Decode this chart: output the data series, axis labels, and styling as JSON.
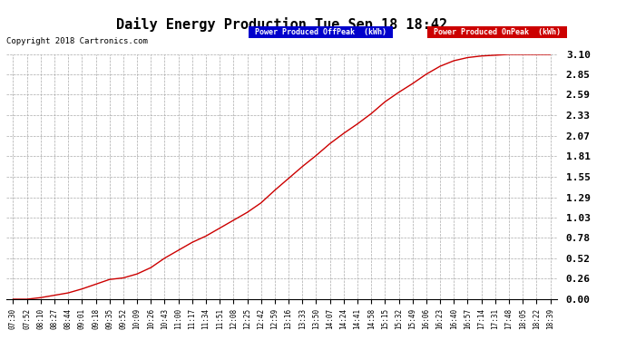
{
  "title": "Daily Energy Production Tue Sep 18 18:42",
  "copyright": "Copyright 2018 Cartronics.com",
  "legend_offpeak": "Power Produced OffPeak  (kWh)",
  "legend_onpeak": "Power Produced OnPeak  (kWh)",
  "y_ticks": [
    0.0,
    0.26,
    0.52,
    0.78,
    1.03,
    1.29,
    1.55,
    1.81,
    2.07,
    2.33,
    2.59,
    2.85,
    3.1
  ],
  "ylim": [
    0.0,
    3.1
  ],
  "background_color": "#ffffff",
  "grid_color": "#aaaaaa",
  "line_color": "#cc0000",
  "x_labels": [
    "07:30",
    "07:52",
    "08:10",
    "08:27",
    "08:44",
    "09:01",
    "09:18",
    "09:35",
    "09:52",
    "10:09",
    "10:26",
    "10:43",
    "11:00",
    "11:17",
    "11:34",
    "11:51",
    "12:08",
    "12:25",
    "12:42",
    "12:59",
    "13:16",
    "13:33",
    "13:50",
    "14:07",
    "14:24",
    "14:41",
    "14:58",
    "15:15",
    "15:32",
    "15:49",
    "16:06",
    "16:23",
    "16:40",
    "16:57",
    "17:14",
    "17:31",
    "17:48",
    "18:05",
    "18:22",
    "18:39"
  ],
  "curve_data": [
    [
      0,
      0.0
    ],
    [
      1,
      0.0
    ],
    [
      2,
      0.02
    ],
    [
      3,
      0.05
    ],
    [
      4,
      0.08
    ],
    [
      5,
      0.13
    ],
    [
      6,
      0.19
    ],
    [
      7,
      0.25
    ],
    [
      8,
      0.27
    ],
    [
      9,
      0.32
    ],
    [
      10,
      0.4
    ],
    [
      11,
      0.52
    ],
    [
      12,
      0.62
    ],
    [
      13,
      0.72
    ],
    [
      14,
      0.8
    ],
    [
      15,
      0.9
    ],
    [
      16,
      1.0
    ],
    [
      17,
      1.1
    ],
    [
      18,
      1.22
    ],
    [
      19,
      1.38
    ],
    [
      20,
      1.53
    ],
    [
      21,
      1.68
    ],
    [
      22,
      1.82
    ],
    [
      23,
      1.97
    ],
    [
      24,
      2.1
    ],
    [
      25,
      2.22
    ],
    [
      26,
      2.35
    ],
    [
      27,
      2.5
    ],
    [
      28,
      2.62
    ],
    [
      29,
      2.73
    ],
    [
      30,
      2.85
    ],
    [
      31,
      2.95
    ],
    [
      32,
      3.02
    ],
    [
      33,
      3.06
    ],
    [
      34,
      3.08
    ],
    [
      35,
      3.09
    ],
    [
      36,
      3.1
    ],
    [
      37,
      3.1
    ],
    [
      38,
      3.1
    ],
    [
      39,
      3.1
    ]
  ],
  "legend_blue_color": "#0000cc",
  "legend_red_color": "#cc0000",
  "title_fontsize": 11,
  "copyright_fontsize": 6.5,
  "ytick_fontsize": 8,
  "xtick_fontsize": 5.5
}
